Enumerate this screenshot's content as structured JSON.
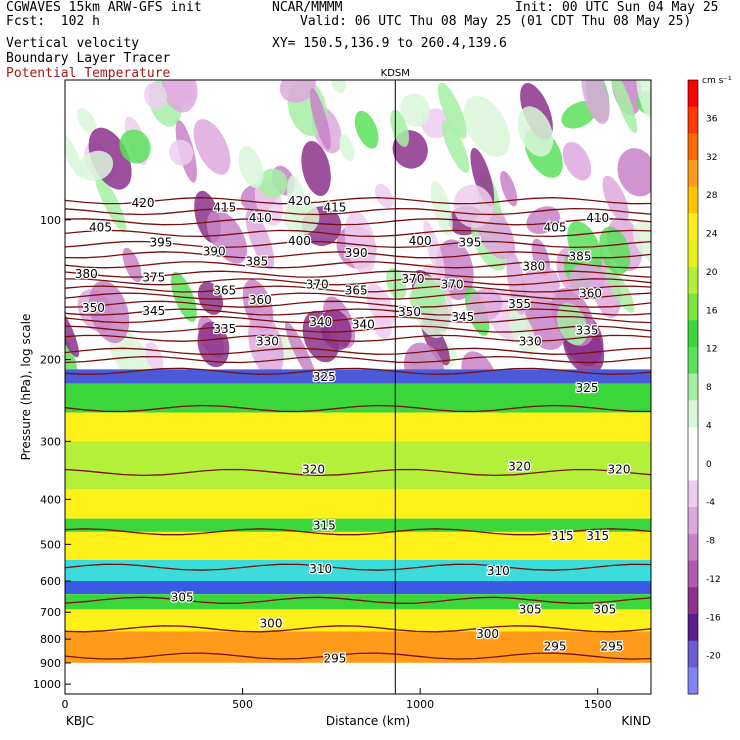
{
  "header": {
    "model": "CGWAVES 15km ARW-GFS init",
    "org": "NCAR/MMMM",
    "init": "Init: 00 UTC Sun 04 May 25",
    "fcst": "Fcst:  102 h",
    "valid": "Valid: 06 UTC Thu 08 May 25 (01 CDT Thu 08 May 25)",
    "field1": "Vertical velocity",
    "field2": "Boundary Layer Tracer",
    "field3": "Potential Temperature",
    "xy": "XY= 150.5,136.9 to 260.4,139.6"
  },
  "chart_data": {
    "type": "heatmap",
    "title": "KDSM",
    "xlabel": "Distance (km)",
    "ylabel": "Pressure (hPa), log scale",
    "x_range": [
      0,
      1650
    ],
    "y_range_hpa": [
      1050,
      50
    ],
    "y_scale": "log",
    "x_ticks": [
      0,
      500,
      1000,
      1500
    ],
    "y_ticks": [
      100,
      200,
      300,
      400,
      500,
      600,
      700,
      800,
      900,
      1000
    ],
    "endpoints": {
      "left": "KBJC",
      "right": "KIND"
    },
    "marker_line": {
      "label": "KDSM",
      "distance_km": 930
    },
    "colorbar": {
      "unit": "cm s⁻¹",
      "labels": [
        36,
        32,
        28,
        24,
        20,
        16,
        12,
        8,
        4,
        0,
        -4,
        -8,
        -12,
        -16,
        -20
      ],
      "colors": [
        "#ff0000",
        "#ff3a00",
        "#ff6a00",
        "#ff9a1a",
        "#ffc400",
        "#fff01a",
        "#e6f21a",
        "#b4f03a",
        "#7ee63a",
        "#3ad63a",
        "#5ae05a",
        "#a6eea6",
        "#d8f6d8",
        "#ffffff",
        "#ffffff",
        "#efcdef",
        "#dea8de",
        "#c882c8",
        "#b05ab0",
        "#8c328c",
        "#5a1e8c",
        "#6a5ad8",
        "#8282f0"
      ]
    },
    "theta_isentropes": [
      {
        "theta": 295,
        "p": 870
      },
      {
        "theta": 300,
        "p": 760
      },
      {
        "theta": 305,
        "p": 660
      },
      {
        "theta": 310,
        "p": 560
      },
      {
        "theta": 315,
        "p": 470
      },
      {
        "theta": 320,
        "p": 350
      },
      {
        "theta": 325,
        "p": 255
      },
      {
        "theta": 330,
        "p": 212
      },
      {
        "theta": 335,
        "p": 200
      },
      {
        "theta": 340,
        "p": 192
      },
      {
        "theta": 345,
        "p": 180
      },
      {
        "theta": 350,
        "p": 172
      },
      {
        "theta": 355,
        "p": 164
      },
      {
        "theta": 360,
        "p": 158
      },
      {
        "theta": 365,
        "p": 152
      },
      {
        "theta": 370,
        "p": 146
      },
      {
        "theta": 375,
        "p": 141
      },
      {
        "theta": 380,
        "p": 136
      },
      {
        "theta": 385,
        "p": 131
      },
      {
        "theta": 390,
        "p": 125
      },
      {
        "theta": 395,
        "p": 119
      },
      {
        "theta": 400,
        "p": 113
      },
      {
        "theta": 405,
        "p": 107
      },
      {
        "theta": 410,
        "p": 101
      },
      {
        "theta": 415,
        "p": 96
      },
      {
        "theta": 420,
        "p": 91
      }
    ],
    "theta_labels": [
      {
        "text": "420",
        "x": 220,
        "p": 92
      },
      {
        "text": "415",
        "x": 450,
        "p": 94
      },
      {
        "text": "420",
        "x": 660,
        "p": 91
      },
      {
        "text": "415",
        "x": 760,
        "p": 94
      },
      {
        "text": "410",
        "x": 550,
        "p": 99
      },
      {
        "text": "405",
        "x": 100,
        "p": 104
      },
      {
        "text": "405",
        "x": 1380,
        "p": 104
      },
      {
        "text": "410",
        "x": 1500,
        "p": 99
      },
      {
        "text": "395",
        "x": 270,
        "p": 112
      },
      {
        "text": "400",
        "x": 660,
        "p": 111
      },
      {
        "text": "390",
        "x": 420,
        "p": 117
      },
      {
        "text": "390",
        "x": 820,
        "p": 118
      },
      {
        "text": "400",
        "x": 1000,
        "p": 111
      },
      {
        "text": "395",
        "x": 1140,
        "p": 112
      },
      {
        "text": "385",
        "x": 540,
        "p": 123
      },
      {
        "text": "385",
        "x": 1450,
        "p": 120
      },
      {
        "text": "380",
        "x": 60,
        "p": 131
      },
      {
        "text": "380",
        "x": 1320,
        "p": 126
      },
      {
        "text": "375",
        "x": 250,
        "p": 133
      },
      {
        "text": "370",
        "x": 980,
        "p": 134
      },
      {
        "text": "365",
        "x": 450,
        "p": 142
      },
      {
        "text": "370",
        "x": 710,
        "p": 138
      },
      {
        "text": "370",
        "x": 1090,
        "p": 138
      },
      {
        "text": "360",
        "x": 550,
        "p": 149
      },
      {
        "text": "365",
        "x": 820,
        "p": 142
      },
      {
        "text": "360",
        "x": 1480,
        "p": 144
      },
      {
        "text": "355",
        "x": 1280,
        "p": 152
      },
      {
        "text": "350",
        "x": 80,
        "p": 155
      },
      {
        "text": "345",
        "x": 250,
        "p": 157
      },
      {
        "text": "350",
        "x": 970,
        "p": 158
      },
      {
        "text": "345",
        "x": 1120,
        "p": 162
      },
      {
        "text": "340",
        "x": 720,
        "p": 166
      },
      {
        "text": "340",
        "x": 840,
        "p": 168
      },
      {
        "text": "335",
        "x": 450,
        "p": 172
      },
      {
        "text": "335",
        "x": 1470,
        "p": 173
      },
      {
        "text": "330",
        "x": 570,
        "p": 183
      },
      {
        "text": "330",
        "x": 1310,
        "p": 183
      },
      {
        "text": "325",
        "x": 730,
        "p": 218
      },
      {
        "text": "325",
        "x": 1470,
        "p": 230
      },
      {
        "text": "320",
        "x": 700,
        "p": 345
      },
      {
        "text": "320",
        "x": 1280,
        "p": 340
      },
      {
        "text": "320",
        "x": 1560,
        "p": 345
      },
      {
        "text": "315",
        "x": 730,
        "p": 455
      },
      {
        "text": "315",
        "x": 1400,
        "p": 480
      },
      {
        "text": "315",
        "x": 1500,
        "p": 480
      },
      {
        "text": "310",
        "x": 720,
        "p": 565
      },
      {
        "text": "310",
        "x": 1220,
        "p": 570
      },
      {
        "text": "305",
        "x": 330,
        "p": 650
      },
      {
        "text": "305",
        "x": 1310,
        "p": 690
      },
      {
        "text": "305",
        "x": 1520,
        "p": 690
      },
      {
        "text": "300",
        "x": 580,
        "p": 740
      },
      {
        "text": "300",
        "x": 1190,
        "p": 780
      },
      {
        "text": "295",
        "x": 760,
        "p": 880
      },
      {
        "text": "295",
        "x": 1380,
        "p": 830
      },
      {
        "text": "295",
        "x": 1540,
        "p": 830
      }
    ]
  }
}
